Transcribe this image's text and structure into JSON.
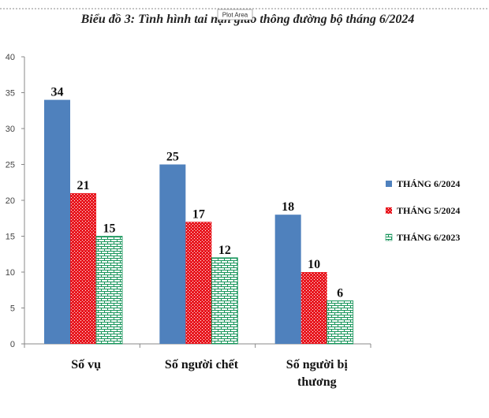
{
  "chart_data": {
    "type": "bar",
    "title": "Biểu đồ 3: Tình hình tai nạn giao thông đường bộ tháng 6/2024",
    "categories": [
      "Số vụ",
      "Số người chết",
      "Số người bị thương"
    ],
    "category_lines": [
      [
        "Số vụ"
      ],
      [
        "Số người chết"
      ],
      [
        "Số người bị",
        "thương"
      ]
    ],
    "series": [
      {
        "name": "THÁNG 6/2024",
        "values": [
          34,
          25,
          18
        ],
        "color": "#4f81bd",
        "pattern": "solid"
      },
      {
        "name": "THÁNG 5/2024",
        "values": [
          21,
          17,
          10
        ],
        "color": "#e8161e",
        "pattern": "dots"
      },
      {
        "name": "THÁNG 6/2023",
        "values": [
          15,
          12,
          6
        ],
        "color": "#17955a",
        "pattern": "brick"
      }
    ],
    "ylim": [
      0,
      40
    ],
    "yticks": [
      0,
      5,
      10,
      15,
      20,
      25,
      30,
      35,
      40
    ],
    "ytick_labels": [
      "0",
      "5",
      "10",
      "15",
      "20",
      "25",
      "30",
      "35",
      "40"
    ],
    "grid": false,
    "legend_position": "right",
    "xlabel": "",
    "ylabel": ""
  },
  "tooltip": "Plot Area"
}
